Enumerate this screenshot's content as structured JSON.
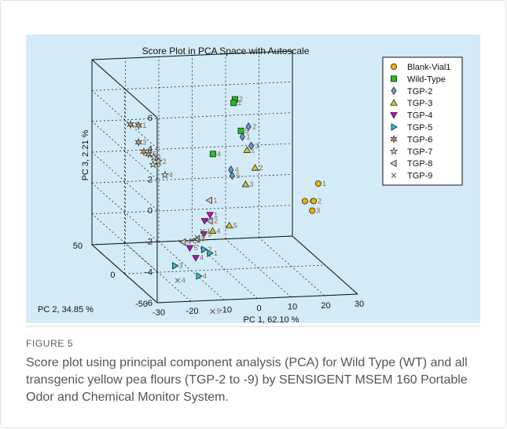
{
  "figure": {
    "label": "FIGURE 5",
    "caption": "Score plot using principal component analysis (PCA) for Wild Type (WT) and all transgenic yellow pea flours (TGP-2 to -9) by SENSIGENT MSEM 160 Portable Odor and Chemical Monitor System."
  },
  "chart_data": {
    "type": "scatter",
    "title": "Score Plot in PCA Space with Autoscale",
    "xlabel": "PC 1,   62.10 %",
    "ylabel": "PC 2,   34.85 %",
    "zlabel": "PC 3,   2.21 %",
    "xlim": [
      -30,
      30
    ],
    "ylim": [
      -50,
      50
    ],
    "zlim": [
      -6,
      6
    ],
    "x_ticks": [
      "-30",
      "-20",
      "-10",
      "0",
      "10",
      "20",
      "30"
    ],
    "y_ticks": [
      "-50",
      "0",
      "50"
    ],
    "z_ticks": [
      "6",
      "4",
      "2",
      "0",
      "-2",
      "-4",
      "-6"
    ],
    "grid": true,
    "legend_position": "top-right",
    "series": [
      {
        "name": "Blank-Vial1",
        "marker": "circle",
        "color": "#f0b400",
        "points": [
          {
            "x": 27,
            "y": -5,
            "z": -0.5,
            "label": "1"
          },
          {
            "x": 23,
            "y": -5,
            "z": -1.6,
            "label": "4"
          },
          {
            "x": 26,
            "y": -3,
            "z": -1.7,
            "label": "2"
          },
          {
            "x": 25,
            "y": -6,
            "z": -2.2,
            "label": "3"
          }
        ]
      },
      {
        "name": "Wild-Type",
        "marker": "square",
        "color": "#22c022",
        "points": [
          {
            "x": 5,
            "y": 10,
            "z": 4.6,
            "label": "2"
          },
          {
            "x": 5,
            "y": 12,
            "z": 4.3,
            "label": "1"
          },
          {
            "x": 6,
            "y": 6,
            "z": 2.7,
            "label": "5"
          },
          {
            "x": -2,
            "y": 8,
            "z": 1.2,
            "label": "4"
          }
        ]
      },
      {
        "name": "TGP-2",
        "marker": "diamond",
        "color": "#6699dd",
        "points": [
          {
            "x": 11,
            "y": 20,
            "z": 2.4,
            "label": "2"
          },
          {
            "x": 8,
            "y": 14,
            "z": 2.0,
            "label": "1"
          },
          {
            "x": 11,
            "y": 16,
            "z": 1.3,
            "label": "3"
          },
          {
            "x": 3,
            "y": 6,
            "z": 0.2,
            "label": "4"
          },
          {
            "x": 3,
            "y": 4,
            "z": -0.1,
            "label": "5"
          }
        ]
      },
      {
        "name": "TGP-3",
        "marker": "triangle-up",
        "color": "#d8cc20",
        "points": [
          {
            "x": 9,
            "y": 12,
            "z": 1.2,
            "label": "1"
          },
          {
            "x": 11,
            "y": 10,
            "z": 0.1,
            "label": "2"
          },
          {
            "x": 7,
            "y": 4,
            "z": -0.7,
            "label": "3"
          },
          {
            "x": -6,
            "y": -12,
            "z": -3.0,
            "label": "4"
          },
          {
            "x": -1,
            "y": -12,
            "z": -2.7,
            "label": "5"
          }
        ]
      },
      {
        "name": "TGP-4",
        "marker": "triangle-down",
        "color": "#cc00cc",
        "points": [
          {
            "x": -6,
            "y": -8,
            "z": -2.1,
            "label": "1"
          },
          {
            "x": -8,
            "y": -10,
            "z": -2.4,
            "label": "2"
          },
          {
            "x": -9,
            "y": -14,
            "z": -3.1,
            "label": "3"
          },
          {
            "x": -13,
            "y": -22,
            "z": -4.3,
            "label": "4"
          },
          {
            "x": -14,
            "y": -18,
            "z": -3.8,
            "label": "5"
          }
        ]
      },
      {
        "name": "TGP-5",
        "marker": "triangle-right",
        "color": "#22c0d8",
        "points": [
          {
            "x": -8,
            "y": -18,
            "z": -4.2,
            "label": "1"
          },
          {
            "x": -9,
            "y": -14,
            "z": -4.1,
            "label": "2"
          },
          {
            "x": -20,
            "y": -26,
            "z": -4.6,
            "label": "3"
          },
          {
            "x": -16,
            "y": -42,
            "z": -4.7,
            "label": "4"
          }
        ]
      },
      {
        "name": "TGP-6",
        "marker": "star6",
        "color": "#e0a060",
        "points": [
          {
            "x": -18,
            "y": 40,
            "z": 2.0,
            "label": "1"
          },
          {
            "x": -20,
            "y": 42,
            "z": 2.0,
            "label": "2"
          },
          {
            "x": -19,
            "y": 35,
            "z": 1.1,
            "label": "3"
          },
          {
            "x": -18,
            "y": 32,
            "z": 0.6,
            "label": "4"
          },
          {
            "x": -17,
            "y": 30,
            "z": 0.5,
            "label": "5"
          }
        ]
      },
      {
        "name": "TGP-7",
        "marker": "pentagram",
        "color": "#dddddd",
        "points": [
          {
            "x": -16,
            "y": 27,
            "z": 0.4,
            "label": "1"
          },
          {
            "x": -15,
            "y": 25,
            "z": 0.2,
            "label": "2"
          },
          {
            "x": -16,
            "y": 28,
            "z": -0.1,
            "label": "3"
          },
          {
            "x": -14,
            "y": 20,
            "z": -0.5,
            "label": "4"
          }
        ]
      },
      {
        "name": "TGP-8",
        "marker": "triangle-left",
        "color": "#cccccc",
        "points": [
          {
            "x": -5,
            "y": -2,
            "z": -1.4,
            "label": "1"
          },
          {
            "x": -6,
            "y": -8,
            "z": -2.5,
            "label": "2"
          },
          {
            "x": -11,
            "y": -14,
            "z": -3.4,
            "label": "3"
          },
          {
            "x": -16,
            "y": -18,
            "z": -3.4,
            "label": "4"
          }
        ]
      },
      {
        "name": "TGP-9",
        "marker": "x",
        "color": "#555555",
        "points": [
          {
            "x": -9,
            "y": -12,
            "z": -3.0,
            "label": "1"
          },
          {
            "x": -11,
            "y": -14,
            "z": -3.3,
            "label": "2"
          },
          {
            "x": -13,
            "y": -16,
            "z": -3.4,
            "label": "3"
          },
          {
            "x": -20,
            "y": -30,
            "z": -5.4,
            "label": "4"
          },
          {
            "x": -13,
            "y": -48,
            "z": -6.8,
            "label": "5"
          }
        ]
      }
    ]
  }
}
